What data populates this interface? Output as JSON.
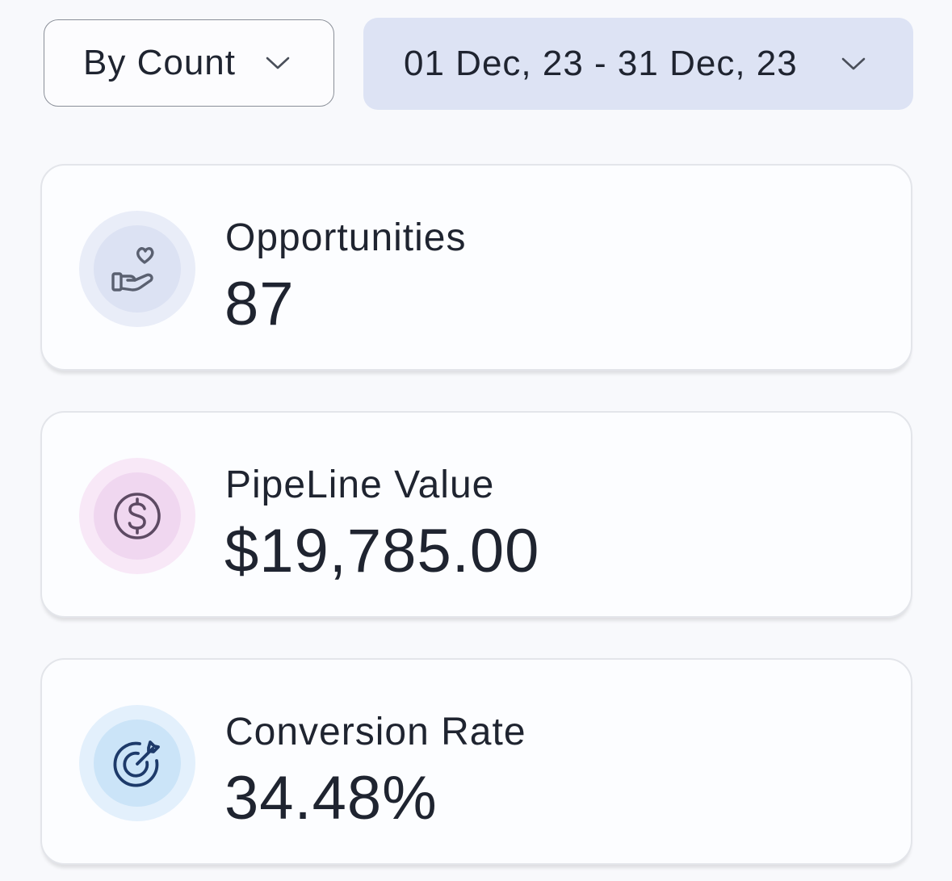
{
  "filters": {
    "mode_label": "By Count",
    "date_range_label": "01 Dec, 23 - 31 Dec, 23"
  },
  "metrics": [
    {
      "title": "Opportunities",
      "value": "87",
      "icon": "hand-heart-icon"
    },
    {
      "title": "PipeLine Value",
      "value": "$19,785.00",
      "icon": "dollar-circle-icon"
    },
    {
      "title": "Conversion Rate",
      "value": "34.48%",
      "icon": "target-arrow-icon"
    }
  ],
  "colors": {
    "background": "#f8f9fc",
    "date_filter_bg": "#dde3f4",
    "opportunities_icon_bg": "#dce2f3",
    "pipeline_icon_bg": "#f0d7f0",
    "conversion_icon_bg": "#cbe4f8",
    "text": "#1f2430"
  }
}
